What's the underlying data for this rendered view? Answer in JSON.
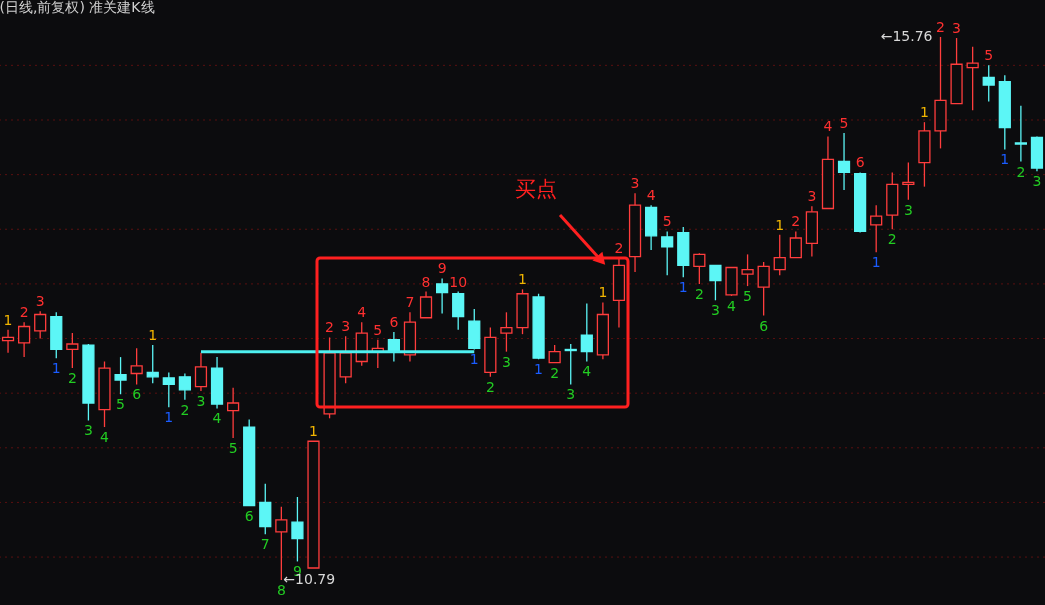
{
  "chart_data": {
    "type": "candlestick",
    "title": "(日线,前复权)",
    "subtitle": "准关建K线",
    "annotations": [
      "买点",
      "←15.76",
      "←10.79"
    ],
    "categories": [
      null,
      null,
      null,
      null,
      null,
      null,
      null,
      null,
      null,
      null,
      null,
      null,
      null,
      null,
      null,
      null,
      null,
      null,
      null,
      null,
      null,
      null,
      null,
      null,
      null,
      null,
      null,
      null,
      null,
      null,
      null,
      null,
      null,
      null,
      null,
      null,
      null,
      null,
      null,
      null,
      null,
      null,
      null,
      null,
      null,
      null,
      null,
      null,
      null,
      null,
      null,
      null,
      null,
      null,
      null,
      null,
      null,
      null,
      null,
      null,
      null,
      null,
      null,
      null,
      null
    ],
    "ohlc": [
      [
        12.98,
        13.08,
        12.87,
        13.01
      ],
      [
        12.96,
        13.15,
        12.83,
        13.11
      ],
      [
        13.07,
        13.25,
        13.0,
        13.22
      ],
      [
        13.2,
        13.24,
        12.82,
        12.9
      ],
      [
        12.9,
        13.05,
        12.73,
        12.95
      ],
      [
        12.94,
        12.95,
        12.25,
        12.41
      ],
      [
        12.35,
        12.79,
        12.19,
        12.73
      ],
      [
        12.67,
        12.83,
        12.49,
        12.62
      ],
      [
        12.68,
        12.91,
        12.58,
        12.75
      ],
      [
        12.69,
        12.94,
        12.59,
        12.65
      ],
      [
        12.64,
        12.69,
        12.37,
        12.58
      ],
      [
        12.65,
        12.68,
        12.44,
        12.53
      ],
      [
        12.56,
        12.87,
        12.52,
        12.74
      ],
      [
        12.73,
        12.83,
        12.36,
        12.4
      ],
      [
        12.34,
        12.55,
        12.09,
        12.41
      ],
      [
        12.19,
        12.26,
        11.47,
        11.47
      ],
      [
        11.5,
        11.67,
        11.21,
        11.28
      ],
      [
        11.23,
        11.46,
        10.79,
        11.34
      ],
      [
        11.32,
        11.55,
        10.96,
        11.17
      ],
      [
        10.9,
        12.06,
        10.9,
        12.06
      ],
      [
        12.31,
        13.01,
        12.27,
        12.87
      ],
      [
        12.65,
        13.02,
        12.59,
        12.87
      ],
      [
        12.79,
        13.15,
        12.75,
        13.05
      ],
      [
        12.88,
        12.99,
        12.73,
        12.91
      ],
      [
        12.99,
        13.06,
        12.79,
        12.89
      ],
      [
        12.85,
        13.24,
        12.79,
        13.15
      ],
      [
        13.19,
        13.43,
        13.19,
        13.38
      ],
      [
        13.5,
        13.55,
        13.23,
        13.42
      ],
      [
        13.41,
        13.43,
        13.08,
        13.2
      ],
      [
        13.16,
        13.27,
        12.9,
        12.91
      ],
      [
        12.69,
        13.1,
        12.65,
        13.01
      ],
      [
        13.05,
        13.24,
        12.88,
        13.1
      ],
      [
        13.1,
        13.45,
        13.04,
        13.41
      ],
      [
        13.38,
        13.41,
        12.81,
        12.82
      ],
      [
        12.78,
        12.94,
        12.78,
        12.88
      ],
      [
        12.9,
        12.95,
        12.58,
        12.89
      ],
      [
        13.03,
        13.32,
        12.79,
        12.88
      ],
      [
        12.85,
        13.33,
        12.81,
        13.22
      ],
      [
        13.35,
        13.74,
        13.1,
        13.67
      ],
      [
        13.75,
        14.33,
        13.61,
        14.22
      ],
      [
        14.2,
        14.22,
        13.81,
        13.94
      ],
      [
        13.93,
        13.98,
        13.58,
        13.84
      ],
      [
        13.97,
        14.02,
        13.56,
        13.67
      ],
      [
        13.66,
        13.78,
        13.5,
        13.77
      ],
      [
        13.67,
        13.67,
        13.35,
        13.53
      ],
      [
        13.4,
        13.65,
        13.39,
        13.65
      ],
      [
        13.59,
        13.77,
        13.48,
        13.63
      ],
      [
        13.47,
        13.7,
        13.21,
        13.66
      ],
      [
        13.63,
        13.95,
        13.58,
        13.74
      ],
      [
        13.74,
        13.98,
        13.74,
        13.92
      ],
      [
        13.87,
        14.21,
        13.75,
        14.16
      ],
      [
        14.19,
        14.85,
        14.19,
        14.64
      ],
      [
        14.62,
        14.88,
        14.36,
        14.52
      ],
      [
        14.51,
        14.52,
        13.97,
        13.98
      ],
      [
        14.04,
        14.22,
        13.79,
        14.12
      ],
      [
        14.13,
        14.52,
        14.0,
        14.41
      ],
      [
        14.41,
        14.61,
        14.27,
        14.43
      ],
      [
        14.61,
        14.98,
        14.39,
        14.9
      ],
      [
        14.9,
        15.76,
        14.74,
        15.18
      ],
      [
        15.15,
        15.75,
        15.15,
        15.51
      ],
      [
        15.48,
        15.67,
        15.09,
        15.52
      ],
      [
        15.39,
        15.5,
        15.17,
        15.32
      ],
      [
        15.35,
        15.41,
        14.73,
        14.93
      ],
      [
        14.79,
        15.13,
        14.62,
        14.78
      ],
      [
        14.84,
        14.85,
        14.53,
        14.56
      ]
    ],
    "colors": [
      "#ff3d3d",
      "#ff3d3d",
      "#ff3d3d",
      "#5cf6f6",
      "#ff3d3d",
      "#5cf6f6",
      "#ff3d3d",
      "#5cf6f6",
      "#ff3d3d",
      "#5cf6f6",
      "#5cf6f6",
      "#5cf6f6",
      "#ff3d3d",
      "#5cf6f6",
      "#ff3d3d",
      "#5cf6f6",
      "#5cf6f6",
      "#ff3d3d",
      "#5cf6f6",
      "#ff3d3d",
      "#ff3d3d",
      "#ff3d3d",
      "#ff3d3d",
      "#ff3d3d",
      "#5cf6f6",
      "#ff3d3d",
      "#ff3d3d",
      "#5cf6f6",
      "#5cf6f6",
      "#5cf6f6",
      "#ff3d3d",
      "#ff3d3d",
      "#ff3d3d",
      "#5cf6f6",
      "#ff3d3d",
      "#5cf6f6",
      "#5cf6f6",
      "#ff3d3d",
      "#ff3d3d",
      "#ff3d3d",
      "#5cf6f6",
      "#5cf6f6",
      "#5cf6f6",
      "#ff3d3d",
      "#5cf6f6",
      "#ff3d3d",
      "#ff3d3d",
      "#ff3d3d",
      "#ff3d3d",
      "#ff3d3d",
      "#ff3d3d",
      "#ff3d3d",
      "#5cf6f6",
      "#5cf6f6",
      "#ff3d3d",
      "#ff3d3d",
      "#ff3d3d",
      "#ff3d3d",
      "#ff3d3d",
      "#ff3d3d",
      "#ff3d3d",
      "#5cf6f6",
      "#5cf6f6",
      "#5cf6f6",
      "#5cf6f6"
    ],
    "value_labels": [
      "1",
      "2",
      "3",
      "1",
      "2",
      "3",
      "4",
      "5",
      "6",
      "1",
      "1",
      "2",
      "3",
      "4",
      "5",
      "6",
      "7",
      "8",
      "9",
      "1",
      "2",
      "3",
      "4",
      "5",
      "6",
      "7",
      "8",
      "9",
      "10",
      "1",
      "2",
      "3",
      "1",
      "1",
      "2",
      "3",
      "4",
      "1",
      "2",
      "3",
      "4",
      "5",
      "1",
      "2",
      "3",
      "4",
      "5",
      "6",
      "1",
      "2",
      "3",
      "4",
      "5",
      "6",
      "1",
      "2",
      "3",
      "1",
      "2",
      "3",
      null,
      "5",
      "1",
      "2",
      "3"
    ],
    "series": [
      {
        "type": "line",
        "color": "#4ef0f0",
        "values": [
          null,
          null,
          null,
          null,
          null,
          null,
          null,
          null,
          null,
          null,
          null,
          null,
          12.88,
          12.88,
          12.88,
          12.88,
          12.88,
          12.88,
          12.88,
          12.88,
          12.88,
          12.88,
          12.88,
          12.88,
          12.88,
          12.88,
          12.88,
          12.88,
          12.88,
          12.88,
          null,
          null,
          null,
          null,
          null,
          null,
          null,
          null,
          null,
          null,
          null,
          null,
          null,
          null,
          null,
          null,
          null,
          null,
          null,
          null,
          null,
          null,
          null,
          null,
          null,
          null,
          null,
          null,
          null,
          null,
          null,
          null,
          null,
          null,
          null
        ]
      }
    ],
    "yticks": [
      {
        "value": 11.0,
        "label": null
      },
      {
        "value": 11.5,
        "label": null
      },
      {
        "value": 12.0,
        "label": null
      },
      {
        "value": 12.5,
        "label": null
      },
      {
        "value": 13.0,
        "label": null
      },
      {
        "value": 13.5,
        "label": null
      },
      {
        "value": 14.0,
        "label": null
      },
      {
        "value": 14.5,
        "label": null
      },
      {
        "value": 15.0,
        "label": null
      },
      {
        "value": 15.5,
        "label": null
      }
    ],
    "grid": true,
    "tick_labels": false
  }
}
